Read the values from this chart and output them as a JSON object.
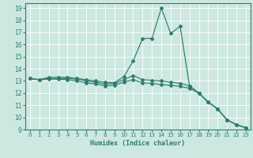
{
  "xlabel": "Humidex (Indice chaleur)",
  "xlim": [
    -0.5,
    23.5
  ],
  "ylim": [
    9,
    19.4
  ],
  "xticks": [
    0,
    1,
    2,
    3,
    4,
    5,
    6,
    7,
    8,
    9,
    10,
    11,
    12,
    13,
    14,
    15,
    16,
    17,
    18,
    19,
    20,
    21,
    22,
    23
  ],
  "yticks": [
    9,
    10,
    11,
    12,
    13,
    14,
    15,
    16,
    17,
    18,
    19
  ],
  "bg_color": "#cce8e0",
  "grid_color": "#b0d8d0",
  "line_color": "#2e7d6e",
  "line1_x": [
    0,
    1,
    2,
    3,
    4,
    5,
    6,
    7,
    8,
    9,
    10,
    11,
    12,
    13,
    14,
    15,
    16,
    17,
    18,
    19,
    20,
    21,
    22,
    23
  ],
  "line1_y": [
    13.2,
    13.1,
    13.3,
    13.3,
    13.3,
    13.2,
    13.1,
    13.0,
    12.9,
    12.85,
    13.35,
    14.65,
    16.5,
    16.5,
    19.0,
    16.9,
    17.5,
    12.6,
    12.0,
    11.25,
    10.7,
    9.8,
    9.4,
    9.15
  ],
  "line2_x": [
    0,
    1,
    2,
    3,
    4,
    5,
    6,
    7,
    8,
    9,
    10,
    11,
    12,
    13,
    14,
    15,
    16,
    17,
    18,
    19,
    20,
    21,
    22,
    23
  ],
  "line2_y": [
    13.2,
    13.1,
    13.2,
    13.2,
    13.2,
    13.15,
    13.0,
    12.9,
    12.75,
    12.8,
    13.1,
    13.45,
    13.1,
    13.05,
    13.0,
    12.9,
    12.8,
    12.6,
    12.0,
    11.25,
    10.7,
    9.8,
    9.4,
    9.15
  ],
  "line3_x": [
    0,
    1,
    2,
    3,
    4,
    5,
    6,
    7,
    8,
    9,
    10,
    11,
    12,
    13,
    14,
    15,
    16,
    17,
    18,
    19,
    20,
    21,
    22,
    23
  ],
  "line3_y": [
    13.2,
    13.1,
    13.15,
    13.15,
    13.1,
    13.0,
    12.85,
    12.75,
    12.6,
    12.65,
    12.9,
    13.1,
    12.85,
    12.8,
    12.7,
    12.65,
    12.55,
    12.4,
    12.0,
    11.25,
    10.7,
    9.8,
    9.4,
    9.15
  ]
}
